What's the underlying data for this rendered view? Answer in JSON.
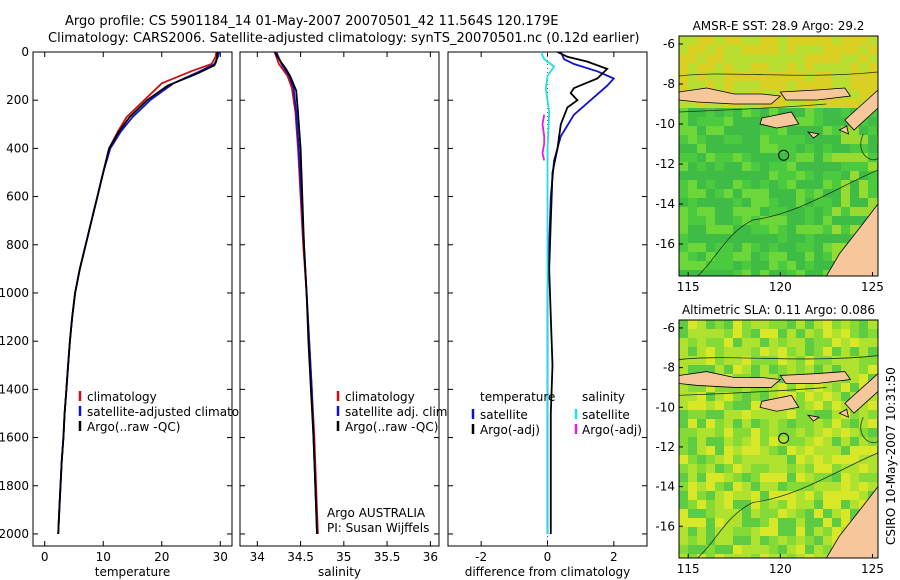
{
  "title_line1": "Argo profile: CS 5901184_14 01-May-2007 20070501_42 11.564S 120.179E",
  "title_line2": "Climatology: CARS2006. Satellite-adjusted climatology: synTS_20070501.nc (0.12d earlier)",
  "side_label": "CSIRO 10-May-2007 10:31:50",
  "colors": {
    "climatology": "#d01010",
    "satellite": "#1010d0",
    "argo": "#000000",
    "sal_satellite": "#20e0e0",
    "sal_argo": "#e020e0"
  },
  "chart_data": [
    {
      "type": "line",
      "xlabel": "temperature",
      "xlim": [
        -2,
        32
      ],
      "ylim": [
        2050,
        0
      ],
      "xticks": [
        0,
        10,
        20,
        30
      ],
      "yticks": [
        0,
        200,
        400,
        600,
        800,
        1000,
        1200,
        1400,
        1600,
        1800,
        2000
      ],
      "legend": [
        "climatology",
        "satellite-adjusted climatology",
        "Argo(..raw -QC)"
      ],
      "series": [
        {
          "name": "climatology",
          "color": "#d01010",
          "points": [
            [
              29.3,
              0
            ],
            [
              29.2,
              20
            ],
            [
              28.5,
              50
            ],
            [
              25,
              80
            ],
            [
              20,
              130
            ],
            [
              17,
              200
            ],
            [
              14,
              270
            ],
            [
              12.5,
              330
            ],
            [
              11,
              400
            ],
            [
              10,
              500
            ],
            [
              9,
              600
            ],
            [
              8,
              700
            ],
            [
              7,
              800
            ],
            [
              6,
              900
            ],
            [
              5.2,
              1000
            ],
            [
              4.7,
              1100
            ],
            [
              4.3,
              1200
            ],
            [
              4,
              1300
            ],
            [
              3.7,
              1400
            ],
            [
              3.4,
              1500
            ],
            [
              3.2,
              1600
            ],
            [
              2.9,
              1700
            ],
            [
              2.7,
              1800
            ],
            [
              2.5,
              1900
            ],
            [
              2.3,
              2000
            ]
          ]
        },
        {
          "name": "satellite-adjusted climatology",
          "color": "#1010d0",
          "points": [
            [
              29.8,
              0
            ],
            [
              29.6,
              20
            ],
            [
              29,
              50
            ],
            [
              26.5,
              80
            ],
            [
              22,
              130
            ],
            [
              18,
              200
            ],
            [
              15,
              270
            ],
            [
              13,
              330
            ],
            [
              11.2,
              400
            ],
            [
              10,
              500
            ],
            [
              9,
              600
            ],
            [
              8,
              700
            ],
            [
              7,
              800
            ],
            [
              6,
              900
            ],
            [
              5.2,
              1000
            ],
            [
              4.7,
              1100
            ],
            [
              4.3,
              1200
            ],
            [
              4,
              1300
            ],
            [
              3.7,
              1400
            ],
            [
              3.4,
              1500
            ],
            [
              3.2,
              1600
            ],
            [
              2.9,
              1700
            ],
            [
              2.7,
              1800
            ],
            [
              2.5,
              1900
            ],
            [
              2.3,
              2000
            ]
          ]
        },
        {
          "name": "Argo(..raw -QC)",
          "color": "#000000",
          "points": [
            [
              29.5,
              0
            ],
            [
              29.4,
              25
            ],
            [
              29.3,
              40
            ],
            [
              29,
              55
            ],
            [
              26,
              90
            ],
            [
              21,
              140
            ],
            [
              17.5,
              200
            ],
            [
              14.5,
              270
            ],
            [
              12.7,
              330
            ],
            [
              11,
              400
            ],
            [
              10,
              500
            ],
            [
              9,
              600
            ],
            [
              8,
              700
            ],
            [
              7,
              800
            ],
            [
              6,
              900
            ],
            [
              5.2,
              1000
            ],
            [
              4.7,
              1100
            ],
            [
              4.3,
              1200
            ],
            [
              4,
              1300
            ],
            [
              3.7,
              1400
            ],
            [
              3.4,
              1500
            ],
            [
              3.2,
              1600
            ],
            [
              2.9,
              1700
            ],
            [
              2.7,
              1800
            ],
            [
              2.5,
              1900
            ],
            [
              2.3,
              2000
            ]
          ]
        }
      ]
    },
    {
      "type": "line",
      "xlabel": "salinity",
      "xlim": [
        33.8,
        36.1
      ],
      "ylim": [
        2050,
        0
      ],
      "xticks": [
        34,
        34.5,
        35,
        35.5,
        36
      ],
      "yticks": [
        0,
        200,
        400,
        600,
        800,
        1000,
        1200,
        1400,
        1600,
        1800,
        2000
      ],
      "legend": [
        "climatology",
        "satellite adj. clim.",
        "Argo(..raw -QC)"
      ],
      "annotation": [
        "Argo AUSTRALIA",
        "PI: Susan Wijffels"
      ],
      "series": [
        {
          "name": "climatology",
          "color": "#d01010",
          "points": [
            [
              34.2,
              0
            ],
            [
              34.25,
              50
            ],
            [
              34.35,
              100
            ],
            [
              34.4,
              150
            ],
            [
              34.44,
              250
            ],
            [
              34.47,
              400
            ],
            [
              34.5,
              600
            ],
            [
              34.53,
              800
            ],
            [
              34.57,
              1000
            ],
            [
              34.6,
              1200
            ],
            [
              34.63,
              1400
            ],
            [
              34.66,
              1600
            ],
            [
              34.68,
              1800
            ],
            [
              34.7,
              2000
            ]
          ]
        },
        {
          "name": "satellite adj. clim.",
          "color": "#1010d0",
          "points": [
            [
              34.22,
              0
            ],
            [
              34.28,
              50
            ],
            [
              34.37,
              100
            ],
            [
              34.42,
              150
            ],
            [
              34.45,
              250
            ],
            [
              34.48,
              400
            ],
            [
              34.51,
              600
            ],
            [
              34.54,
              800
            ],
            [
              34.57,
              1000
            ],
            [
              34.6,
              1200
            ],
            [
              34.63,
              1400
            ],
            [
              34.65,
              1600
            ],
            [
              34.67,
              1800
            ],
            [
              34.69,
              2000
            ]
          ]
        },
        {
          "name": "Argo(..raw -QC)",
          "color": "#000000",
          "points": [
            [
              34.2,
              0
            ],
            [
              34.27,
              40
            ],
            [
              34.33,
              70
            ],
            [
              34.38,
              100
            ],
            [
              34.45,
              160
            ],
            [
              34.47,
              250
            ],
            [
              34.5,
              400
            ],
            [
              34.52,
              600
            ],
            [
              34.54,
              800
            ],
            [
              34.57,
              1000
            ],
            [
              34.59,
              1200
            ],
            [
              34.62,
              1400
            ],
            [
              34.65,
              1600
            ],
            [
              34.67,
              1800
            ],
            [
              34.69,
              2000
            ]
          ]
        }
      ]
    },
    {
      "type": "line",
      "xlabel": "difference from climatology",
      "xlim": [
        -3,
        3
      ],
      "ylim": [
        2050,
        0
      ],
      "xticks": [
        -2,
        0,
        2
      ],
      "yticks": [
        0,
        200,
        400,
        600,
        800,
        1000,
        1200,
        1400,
        1600,
        1800,
        2000
      ],
      "legend_temperature": {
        "header": "temperature",
        "entries": [
          "satellite",
          "Argo(-adj)"
        ]
      },
      "legend_salinity": {
        "header": "salinity",
        "entries": [
          "satellite",
          "Argo(-adj)"
        ]
      },
      "series": [
        {
          "name": "temperature satellite",
          "color": "#1010d0",
          "points": [
            [
              0.4,
              0
            ],
            [
              0.5,
              30
            ],
            [
              0.8,
              50
            ],
            [
              1.5,
              80
            ],
            [
              2,
              110
            ],
            [
              1.8,
              140
            ],
            [
              1.3,
              200
            ],
            [
              0.8,
              260
            ],
            [
              0.4,
              350
            ],
            [
              0.2,
              450
            ],
            [
              0.1,
              600
            ],
            [
              0.05,
              800
            ],
            [
              0,
              1000
            ],
            [
              0,
              1500
            ],
            [
              0,
              2000
            ]
          ]
        },
        {
          "name": "temperature Argo(-adj)",
          "color": "#000000",
          "points": [
            [
              0.3,
              0
            ],
            [
              0.6,
              20
            ],
            [
              1.2,
              40
            ],
            [
              1.8,
              70
            ],
            [
              1.5,
              110
            ],
            [
              0.8,
              150
            ],
            [
              0.7,
              170
            ],
            [
              0.9,
              200
            ],
            [
              0.6,
              230
            ],
            [
              0.4,
              300
            ],
            [
              0.3,
              400
            ],
            [
              0.15,
              500
            ],
            [
              0.1,
              700
            ],
            [
              0.05,
              900
            ],
            [
              0.1,
              1100
            ],
            [
              0.15,
              1300
            ],
            [
              0.1,
              1500
            ],
            [
              0.1,
              1700
            ],
            [
              0.1,
              2000
            ]
          ]
        },
        {
          "name": "salinity satellite",
          "color": "#20e0e0",
          "points": [
            [
              -0.2,
              0
            ],
            [
              -0.1,
              30
            ],
            [
              0.2,
              60
            ],
            [
              0,
              100
            ],
            [
              -0.05,
              150
            ],
            [
              0.05,
              250
            ],
            [
              0,
              400
            ],
            [
              0,
              700
            ],
            [
              0,
              1000
            ],
            [
              0,
              1500
            ],
            [
              0,
              2000
            ]
          ]
        },
        {
          "name": "salinity Argo(-adj)",
          "color": "#e020e0",
          "points": [
            [
              -0.1,
              260
            ],
            [
              -0.15,
              300
            ],
            [
              -0.1,
              350
            ],
            [
              -0.1,
              380
            ],
            [
              -0.15,
              420
            ],
            [
              -0.1,
              450
            ]
          ]
        }
      ]
    }
  ],
  "maps": [
    {
      "title": "AMSR-E SST: 28.9 Argo: 29.2",
      "xticks": [
        115,
        120,
        125
      ],
      "yticks": [
        -6,
        -8,
        -10,
        -12,
        -14,
        -16
      ],
      "xlim": [
        114.5,
        125.3
      ],
      "ylim": [
        -17.6,
        -5.6
      ]
    },
    {
      "title": "Altimetric SLA: 0.11 Argo: 0.086",
      "xticks": [
        115,
        120,
        125
      ],
      "yticks": [
        -6,
        -8,
        -10,
        -12,
        -14,
        -16
      ],
      "xlim": [
        114.5,
        125.3
      ],
      "ylim": [
        -17.6,
        -5.6
      ]
    }
  ]
}
